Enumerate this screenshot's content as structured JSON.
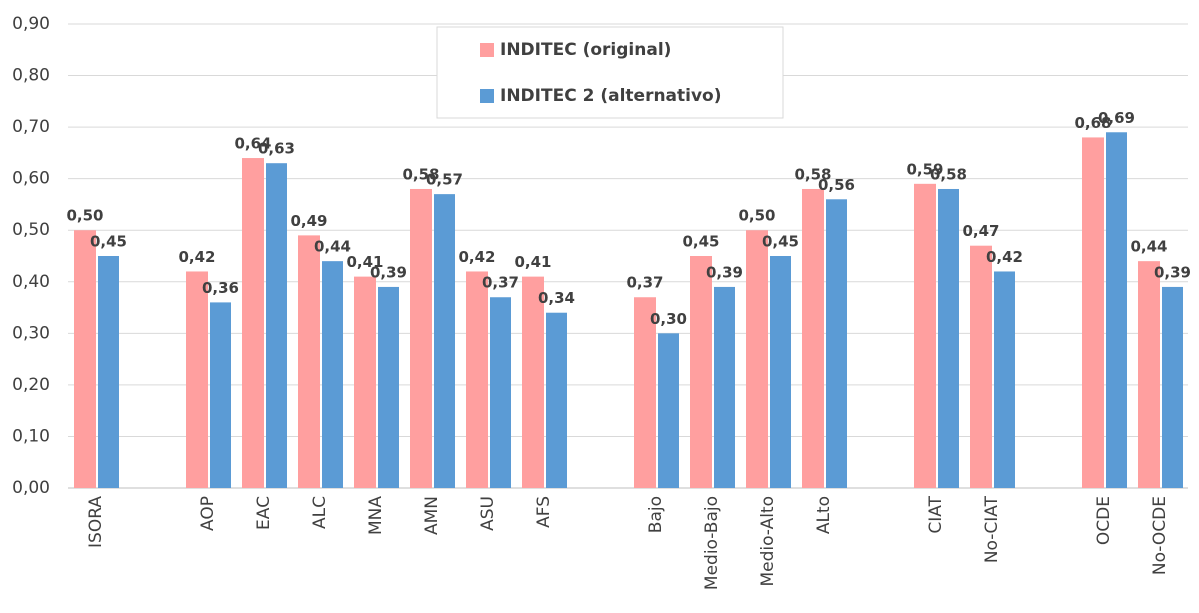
{
  "chart_data": {
    "type": "bar",
    "categories": [
      "ISORA",
      null,
      "AOP",
      "EAC",
      "ALC",
      "MNA",
      "AMN",
      "ASU",
      "AFS",
      null,
      "Bajo",
      "Medio-Bajo",
      "Medio-Alto",
      "ALto",
      null,
      "CIAT",
      "No-CIAT",
      null,
      "OCDE",
      "No-OCDE"
    ],
    "series": [
      {
        "name": "INDITEC (original)",
        "color": "#ff9f9f",
        "values": [
          0.5,
          null,
          0.42,
          0.64,
          0.49,
          0.41,
          0.58,
          0.42,
          0.41,
          null,
          0.37,
          0.45,
          0.5,
          0.58,
          null,
          0.59,
          0.47,
          null,
          0.68,
          0.44
        ],
        "value_labels": [
          "0,50",
          null,
          "0,42",
          "0,64",
          "0,49",
          "0,41",
          "0,58",
          "0,42",
          "0,41",
          null,
          "0,37",
          "0,45",
          "0,50",
          "0,58",
          null,
          "0,59",
          "0,47",
          null,
          "0,68",
          "0,44"
        ]
      },
      {
        "name": "INDITEC 2 (alternativo)",
        "color": "#5b9bd5",
        "values": [
          0.45,
          null,
          0.36,
          0.63,
          0.44,
          0.39,
          0.57,
          0.37,
          0.34,
          null,
          0.3,
          0.39,
          0.45,
          0.56,
          null,
          0.58,
          0.42,
          null,
          0.69,
          0.39
        ],
        "value_labels": [
          "0,45",
          null,
          "0,36",
          "0,63",
          "0,44",
          "0,39",
          "0,57",
          "0,37",
          "0,34",
          null,
          "0,30",
          "0,39",
          "0,45",
          "0,56",
          null,
          "0,58",
          "0,42",
          null,
          "0,69",
          "0,39"
        ]
      }
    ],
    "ylim": [
      0,
      0.9
    ],
    "yticks": [
      {
        "value": 0,
        "label": "0,00"
      },
      {
        "value": 0.1,
        "label": "0,10"
      },
      {
        "value": 0.2,
        "label": "0,20"
      },
      {
        "value": 0.3,
        "label": "0,30"
      },
      {
        "value": 0.4,
        "label": "0,40"
      },
      {
        "value": 0.5,
        "label": "0,50"
      },
      {
        "value": 0.6,
        "label": "0,60"
      },
      {
        "value": 0.7,
        "label": "0,70"
      },
      {
        "value": 0.8,
        "label": "0,80"
      },
      {
        "value": 0.9,
        "label": "0,90"
      }
    ],
    "grid": true,
    "legend": "top"
  }
}
